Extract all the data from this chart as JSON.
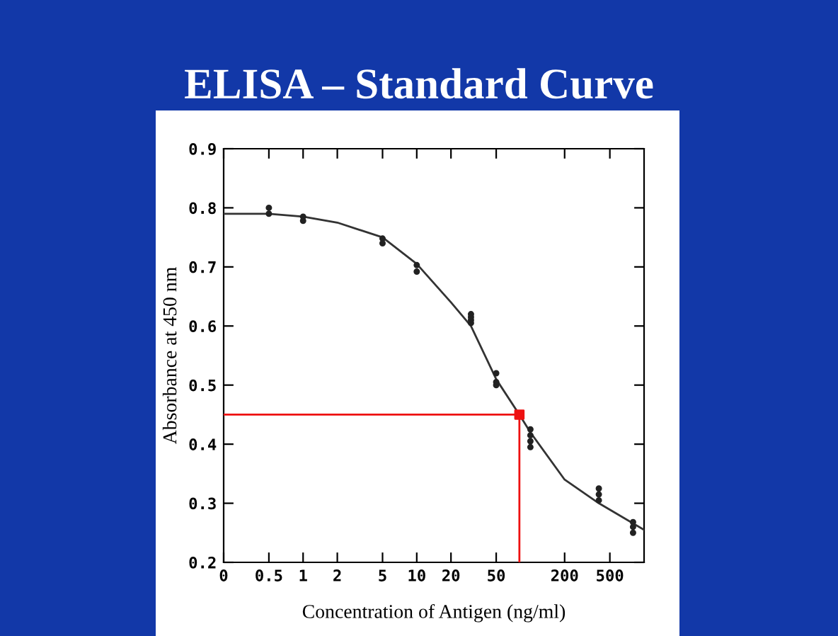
{
  "chart_data": {
    "type": "scatter",
    "title": "ELISA – Standard Curve",
    "xlabel": "Concentration of Antigen (ng/ml)",
    "ylabel": "Absorbance at 450 nm",
    "log": "x",
    "xlim": [
      0.2,
      1000
    ],
    "ylim": [
      0.2,
      0.9
    ],
    "xticks": [
      {
        "value": 0.2,
        "label": "0"
      },
      0.5,
      1,
      2,
      5,
      10,
      20,
      50,
      200,
      500
    ],
    "yticks": [
      0.2,
      0.3,
      0.4,
      0.5,
      0.6,
      0.7,
      0.8,
      0.9
    ],
    "grid": false,
    "legend": false,
    "series": [
      {
        "color": "#222222",
        "marker": "circle",
        "x": [
          0.5,
          0.5,
          1,
          1,
          5,
          5,
          10,
          10,
          30,
          30,
          30,
          30,
          50,
          50,
          50,
          100,
          100,
          100,
          100,
          400,
          400,
          400,
          800,
          800,
          800
        ],
        "values": [
          0.8,
          0.79,
          0.785,
          0.778,
          0.748,
          0.74,
          0.703,
          0.692,
          0.62,
          0.615,
          0.61,
          0.605,
          0.52,
          0.505,
          0.5,
          0.425,
          0.415,
          0.405,
          0.395,
          0.325,
          0.315,
          0.305,
          0.268,
          0.26,
          0.25
        ]
      },
      {
        "type": "line",
        "color": "#333333",
        "marker": "none",
        "line_style": "solid",
        "x": [
          0.2,
          0.5,
          1,
          2,
          5,
          10,
          20,
          30,
          50,
          80,
          100,
          200,
          400,
          1000
        ],
        "values": [
          0.79,
          0.79,
          0.785,
          0.775,
          0.75,
          0.705,
          0.64,
          0.6,
          0.51,
          0.45,
          0.42,
          0.34,
          0.3,
          0.255
        ]
      },
      {
        "type": "line",
        "color": "#ee1111",
        "marker": "none",
        "line_style": "solid",
        "x": [
          0.2,
          80,
          80
        ],
        "values": [
          0.45,
          0.45,
          0.2
        ]
      },
      {
        "color": "#ee1111",
        "marker": "square",
        "x": [
          80
        ],
        "values": [
          0.45
        ]
      }
    ]
  }
}
